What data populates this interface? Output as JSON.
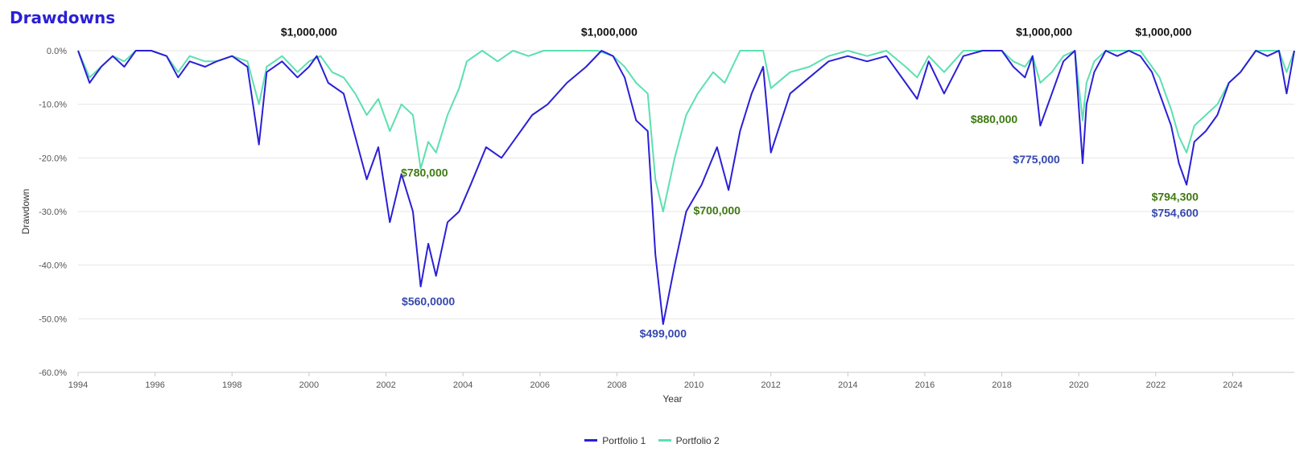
{
  "chart_data": {
    "type": "line",
    "title": "Drawdowns",
    "xlabel": "Year",
    "ylabel": "Drawdown",
    "xlim": [
      1994,
      2025.6
    ],
    "ylim": [
      -60,
      0
    ],
    "x_ticks": [
      "1994",
      "1996",
      "1998",
      "2000",
      "2002",
      "2004",
      "2006",
      "2008",
      "2010",
      "2012",
      "2014",
      "2016",
      "2018",
      "2020",
      "2022",
      "2024"
    ],
    "y_ticks": [
      "0.0%",
      "-10.0%",
      "-20.0%",
      "-30.0%",
      "-40.0%",
      "-50.0%",
      "-60.0%"
    ],
    "grid": true,
    "legend_position": "bottom",
    "series": [
      {
        "name": "Portfolio 1",
        "color": "#2b1fd6",
        "x": [
          1994.0,
          1994.3,
          1994.6,
          1994.9,
          1995.2,
          1995.5,
          1995.9,
          1996.3,
          1996.6,
          1996.9,
          1997.3,
          1997.6,
          1998.0,
          1998.4,
          1998.7,
          1998.9,
          1999.3,
          1999.7,
          2000.0,
          2000.2,
          2000.5,
          2000.9,
          2001.2,
          2001.5,
          2001.8,
          2002.1,
          2002.4,
          2002.7,
          2002.9,
          2003.1,
          2003.3,
          2003.6,
          2003.9,
          2004.2,
          2004.6,
          2005.0,
          2005.4,
          2005.8,
          2006.2,
          2006.7,
          2007.2,
          2007.6,
          2007.9,
          2008.2,
          2008.5,
          2008.8,
          2009.0,
          2009.2,
          2009.5,
          2009.8,
          2010.2,
          2010.6,
          2010.9,
          2011.2,
          2011.5,
          2011.8,
          2012.0,
          2012.5,
          2013.0,
          2013.5,
          2014.0,
          2014.5,
          2015.0,
          2015.5,
          2015.8,
          2016.1,
          2016.5,
          2017.0,
          2017.5,
          2018.0,
          2018.3,
          2018.6,
          2018.8,
          2019.0,
          2019.3,
          2019.6,
          2019.9,
          2020.1,
          2020.2,
          2020.4,
          2020.7,
          2021.0,
          2021.3,
          2021.6,
          2021.9,
          2022.1,
          2022.4,
          2022.6,
          2022.8,
          2023.0,
          2023.3,
          2023.6,
          2023.9,
          2024.2,
          2024.6,
          2024.9,
          2025.2,
          2025.4,
          2025.6
        ],
        "values": [
          0,
          -6,
          -3,
          -1,
          -3,
          0,
          0,
          -1,
          -5,
          -2,
          -3,
          -2,
          -1,
          -3,
          -17.5,
          -4,
          -2,
          -5,
          -3,
          -1,
          -6,
          -8,
          -16,
          -24,
          -18,
          -32,
          -23,
          -30,
          -44,
          -36,
          -42,
          -32,
          -30,
          -25,
          -18,
          -20,
          -16,
          -12,
          -10,
          -6,
          -3,
          0,
          -1,
          -5,
          -13,
          -15,
          -38,
          -51,
          -40,
          -30,
          -25,
          -18,
          -26,
          -15,
          -8,
          -3,
          -19,
          -8,
          -5,
          -2,
          -1,
          -2,
          -1,
          -6,
          -9,
          -2,
          -8,
          -1,
          0,
          0,
          -3,
          -5,
          -1,
          -14,
          -8,
          -2,
          0,
          -21,
          -10,
          -4,
          0,
          -1,
          0,
          -1,
          -4,
          -8,
          -14,
          -21,
          -25,
          -17,
          -15,
          -12,
          -6,
          -4,
          0,
          -1,
          0,
          -8,
          0
        ]
      },
      {
        "name": "Portfolio 2",
        "color": "#5ce0b0",
        "x": [
          1994.0,
          1994.3,
          1994.6,
          1994.9,
          1995.2,
          1995.5,
          1995.9,
          1996.3,
          1996.6,
          1996.9,
          1997.3,
          1997.6,
          1998.0,
          1998.4,
          1998.7,
          1998.9,
          1999.3,
          1999.7,
          2000.0,
          2000.3,
          2000.6,
          2000.9,
          2001.2,
          2001.5,
          2001.8,
          2002.1,
          2002.4,
          2002.7,
          2002.9,
          2003.1,
          2003.3,
          2003.6,
          2003.9,
          2004.1,
          2004.5,
          2004.9,
          2005.3,
          2005.7,
          2006.1,
          2006.5,
          2007.0,
          2007.5,
          2007.9,
          2008.2,
          2008.5,
          2008.8,
          2009.0,
          2009.2,
          2009.5,
          2009.8,
          2010.1,
          2010.5,
          2010.8,
          2011.2,
          2011.5,
          2011.8,
          2012.0,
          2012.5,
          2013.0,
          2013.5,
          2014.0,
          2014.5,
          2015.0,
          2015.5,
          2015.8,
          2016.1,
          2016.5,
          2017.0,
          2017.5,
          2018.0,
          2018.3,
          2018.6,
          2018.8,
          2019.0,
          2019.3,
          2019.6,
          2019.9,
          2020.1,
          2020.2,
          2020.4,
          2020.7,
          2021.0,
          2021.3,
          2021.6,
          2021.9,
          2022.1,
          2022.4,
          2022.6,
          2022.8,
          2023.0,
          2023.3,
          2023.6,
          2023.9,
          2024.2,
          2024.6,
          2024.9,
          2025.2,
          2025.4,
          2025.6
        ],
        "values": [
          0,
          -5,
          -3,
          -1,
          -2,
          0,
          0,
          -1,
          -4,
          -1,
          -2,
          -2,
          -1,
          -2,
          -10,
          -3,
          -1,
          -4,
          -2,
          -1,
          -4,
          -5,
          -8,
          -12,
          -9,
          -15,
          -10,
          -12,
          -22,
          -17,
          -19,
          -12,
          -7,
          -2,
          0,
          -2,
          0,
          -1,
          0,
          0,
          0,
          0,
          -1,
          -3,
          -6,
          -8,
          -24,
          -30,
          -20,
          -12,
          -8,
          -4,
          -6,
          0,
          0,
          0,
          -7,
          -4,
          -3,
          -1,
          0,
          -1,
          0,
          -3,
          -5,
          -1,
          -4,
          0,
          0,
          0,
          -2,
          -3,
          -1,
          -6,
          -4,
          -1,
          0,
          -13,
          -6,
          -2,
          0,
          0,
          0,
          0,
          -3,
          -5,
          -11,
          -16,
          -19,
          -14,
          -12,
          -10,
          -6,
          -4,
          0,
          0,
          0,
          -4,
          0
        ]
      }
    ],
    "annotations": [
      {
        "text": "$1,000,000",
        "x": 2000.0,
        "y": 2.8,
        "color": "#111111"
      },
      {
        "text": "$1,000,000",
        "x": 2007.8,
        "y": 2.8,
        "color": "#111111"
      },
      {
        "text": "$1,000,000",
        "x": 2019.1,
        "y": 2.8,
        "color": "#111111"
      },
      {
        "text": "$1,000,000",
        "x": 2022.2,
        "y": 2.8,
        "color": "#111111"
      },
      {
        "text": "$780,000",
        "x": 2003.0,
        "y": -23.5,
        "color": "#3f7a12"
      },
      {
        "text": "$560,0000",
        "x": 2003.1,
        "y": -47.5,
        "color": "#3548b0"
      },
      {
        "text": "$499,000",
        "x": 2009.2,
        "y": -53.5,
        "color": "#3548b0"
      },
      {
        "text": "$700,000",
        "x": 2010.6,
        "y": -30.5,
        "color": "#3f7a12"
      },
      {
        "text": "$880,000",
        "x": 2017.8,
        "y": -13.5,
        "color": "#3f7a12"
      },
      {
        "text": "$775,000",
        "x": 2018.9,
        "y": -21.0,
        "color": "#3548b0"
      },
      {
        "text": "$794,300",
        "x": 2022.5,
        "y": -28.0,
        "color": "#3f7a12"
      },
      {
        "text": "$754,600",
        "x": 2022.5,
        "y": -31.0,
        "color": "#3548b0"
      }
    ]
  }
}
